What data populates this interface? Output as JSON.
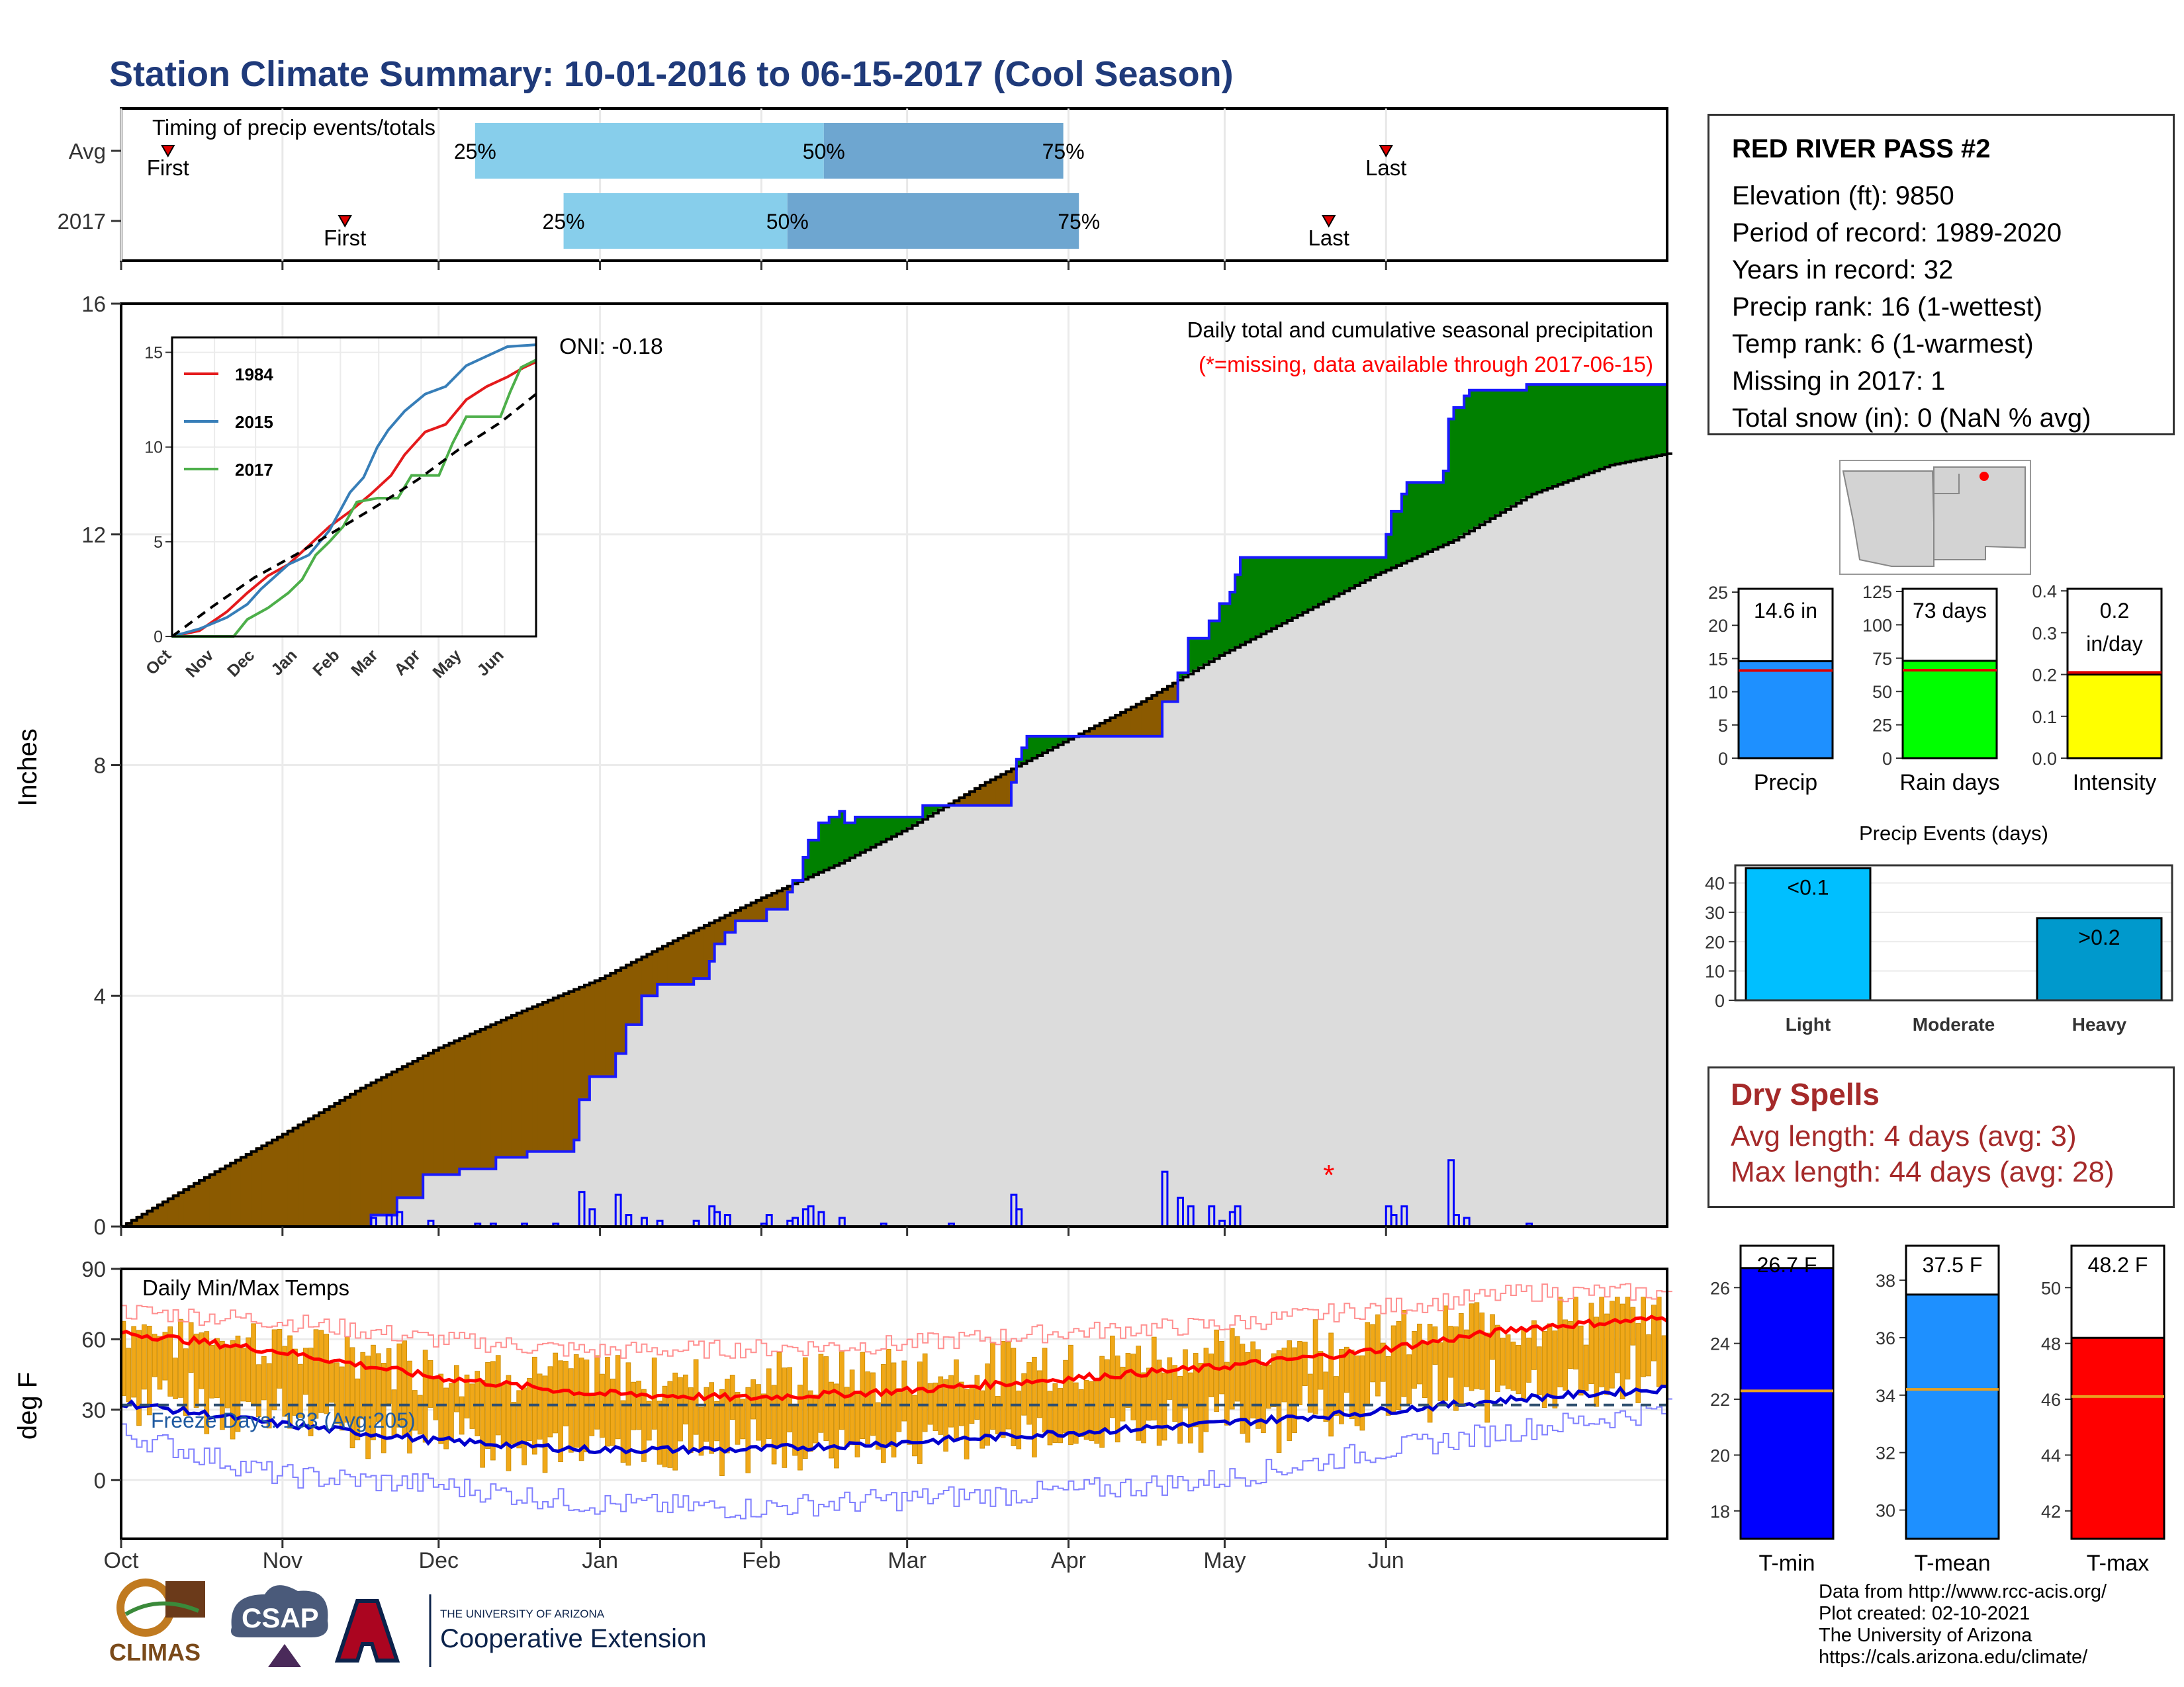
{
  "title": "Station Climate Summary: 10-01-2016 to 06-15-2017 (Cool Season)",
  "timing_panel": {
    "label": "Timing of precip events/totals",
    "rows": [
      {
        "name": "Avg",
        "first_label": "First",
        "last_label": "Last",
        "first": "2016-10-10",
        "last": "2017-06-01",
        "p25": "2016-12-08",
        "p50": "2017-02-13",
        "p75": "2017-03-31"
      },
      {
        "name": "2017",
        "first_label": "First",
        "last_label": "Last",
        "first": "2016-11-13",
        "last": "2017-05-21",
        "p25": "2016-12-25",
        "p50": "2017-02-06",
        "p75": "2017-04-03"
      }
    ],
    "pct_labels": [
      "25%",
      "50%",
      "75%"
    ],
    "colors": {
      "light": "#87ceeb",
      "dark": "#6ea6d0",
      "marker": "#e00000"
    }
  },
  "precip_chart": {
    "ylabel": "Inches",
    "yticks": [
      0,
      4,
      8,
      12,
      16
    ],
    "ylim": [
      0,
      16
    ],
    "oni_label": "ONI: -0.18",
    "note_title": "Daily total and cumulative seasonal precipitation",
    "note_missing": "(*=missing, data available through 2017-06-15)",
    "colors": {
      "surplus": "#008000",
      "deficit": "#8b5a00",
      "climo": "#dcdcdc",
      "bars": "#0000ff"
    },
    "cumulative_avg": [
      [
        0,
        0
      ],
      [
        15,
        0.8
      ],
      [
        31,
        1.6
      ],
      [
        46,
        2.4
      ],
      [
        61,
        3.1
      ],
      [
        76,
        3.7
      ],
      [
        92,
        4.3
      ],
      [
        107,
        5.0
      ],
      [
        123,
        5.7
      ],
      [
        138,
        6.3
      ],
      [
        151,
        6.9
      ],
      [
        166,
        7.7
      ],
      [
        181,
        8.4
      ],
      [
        196,
        9.1
      ],
      [
        211,
        9.9
      ],
      [
        226,
        10.6
      ],
      [
        241,
        11.3
      ],
      [
        256,
        11.9
      ],
      [
        271,
        12.7
      ],
      [
        286,
        13.2
      ],
      [
        297,
        13.4
      ]
    ],
    "cumulative_2017": [
      [
        0,
        0
      ],
      [
        45,
        0
      ],
      [
        48,
        0.2
      ],
      [
        53,
        0.5
      ],
      [
        58,
        0.9
      ],
      [
        65,
        1.0
      ],
      [
        72,
        1.2
      ],
      [
        78,
        1.3
      ],
      [
        87,
        1.5
      ],
      [
        88,
        2.2
      ],
      [
        90,
        2.6
      ],
      [
        95,
        3.0
      ],
      [
        97,
        3.5
      ],
      [
        100,
        4.0
      ],
      [
        103,
        4.2
      ],
      [
        110,
        4.3
      ],
      [
        113,
        4.6
      ],
      [
        114,
        4.9
      ],
      [
        116,
        5.1
      ],
      [
        118,
        5.3
      ],
      [
        123,
        5.3
      ],
      [
        124,
        5.5
      ],
      [
        128,
        5.8
      ],
      [
        129,
        6.0
      ],
      [
        131,
        6.4
      ],
      [
        132,
        6.7
      ],
      [
        134,
        7.0
      ],
      [
        136,
        7.1
      ],
      [
        138,
        7.2
      ],
      [
        139,
        7.0
      ],
      [
        141,
        7.1
      ],
      [
        153,
        7.1
      ],
      [
        154,
        7.3
      ],
      [
        170,
        7.3
      ],
      [
        171,
        7.7
      ],
      [
        172,
        8.1
      ],
      [
        173,
        8.3
      ],
      [
        174,
        8.5
      ],
      [
        199,
        8.5
      ],
      [
        200,
        9.1
      ],
      [
        203,
        9.6
      ],
      [
        205,
        10.2
      ],
      [
        209,
        10.5
      ],
      [
        211,
        10.8
      ],
      [
        213,
        11.0
      ],
      [
        214,
        11.3
      ],
      [
        215,
        11.6
      ],
      [
        228,
        11.6
      ],
      [
        242,
        11.6
      ],
      [
        243,
        12.0
      ],
      [
        244,
        12.4
      ],
      [
        246,
        12.7
      ],
      [
        247,
        12.9
      ],
      [
        254,
        13.1
      ],
      [
        255,
        14.0
      ],
      [
        256,
        14.2
      ],
      [
        257,
        14.2
      ],
      [
        258,
        14.4
      ],
      [
        259,
        14.5
      ],
      [
        269,
        14.5
      ],
      [
        270,
        14.6
      ],
      [
        297,
        14.6
      ]
    ],
    "daily_bars": [
      [
        48,
        0.15
      ],
      [
        51,
        0.2
      ],
      [
        53,
        0.25
      ],
      [
        59,
        0.1
      ],
      [
        68,
        0.05
      ],
      [
        71,
        0.05
      ],
      [
        77,
        0.05
      ],
      [
        83,
        0.05
      ],
      [
        88,
        0.6
      ],
      [
        90,
        0.3
      ],
      [
        95,
        0.55
      ],
      [
        97,
        0.2
      ],
      [
        100,
        0.15
      ],
      [
        103,
        0.1
      ],
      [
        110,
        0.1
      ],
      [
        113,
        0.35
      ],
      [
        114,
        0.25
      ],
      [
        116,
        0.2
      ],
      [
        123,
        0.05
      ],
      [
        124,
        0.2
      ],
      [
        128,
        0.1
      ],
      [
        129,
        0.15
      ],
      [
        131,
        0.3
      ],
      [
        132,
        0.35
      ],
      [
        134,
        0.25
      ],
      [
        138,
        0.15
      ],
      [
        146,
        0.05
      ],
      [
        159,
        0.05
      ],
      [
        171,
        0.55
      ],
      [
        172,
        0.3
      ],
      [
        200,
        0.95
      ],
      [
        203,
        0.5
      ],
      [
        205,
        0.35
      ],
      [
        209,
        0.35
      ],
      [
        211,
        0.1
      ],
      [
        213,
        0.25
      ],
      [
        214,
        0.35
      ],
      [
        243,
        0.35
      ],
      [
        244,
        0.2
      ],
      [
        246,
        0.35
      ],
      [
        255,
        1.15
      ],
      [
        256,
        0.2
      ],
      [
        258,
        0.15
      ],
      [
        270,
        0.05
      ]
    ],
    "missing_marker": {
      "day": 232,
      "value": 0.95,
      "symbol": "*"
    }
  },
  "inset_chart": {
    "ylim": [
      0,
      15
    ],
    "yticks": [
      0,
      5,
      10,
      15
    ],
    "months": [
      "Oct",
      "Nov",
      "Dec",
      "Jan",
      "Feb",
      "Mar",
      "Apr",
      "May",
      "Jun"
    ],
    "series": [
      {
        "name": "1984",
        "color": "#e41a1c",
        "values": [
          [
            0,
            0
          ],
          [
            20,
            0.3
          ],
          [
            40,
            1.3
          ],
          [
            55,
            2.3
          ],
          [
            70,
            3.2
          ],
          [
            85,
            3.8
          ],
          [
            100,
            4.8
          ],
          [
            115,
            5.8
          ],
          [
            130,
            6.6
          ],
          [
            145,
            7.5
          ],
          [
            160,
            8.5
          ],
          [
            170,
            9.6
          ],
          [
            185,
            10.8
          ],
          [
            200,
            11.2
          ],
          [
            215,
            12.5
          ],
          [
            230,
            13.2
          ],
          [
            245,
            13.7
          ],
          [
            257,
            14.2
          ],
          [
            266,
            14.5
          ]
        ]
      },
      {
        "name": "2015",
        "color": "#377eb8",
        "values": [
          [
            0,
            0
          ],
          [
            20,
            0.4
          ],
          [
            40,
            1.0
          ],
          [
            55,
            1.7
          ],
          [
            65,
            2.5
          ],
          [
            85,
            3.8
          ],
          [
            100,
            4.3
          ],
          [
            115,
            5.6
          ],
          [
            130,
            7.6
          ],
          [
            140,
            8.4
          ],
          [
            150,
            10.0
          ],
          [
            158,
            10.9
          ],
          [
            170,
            11.9
          ],
          [
            185,
            12.8
          ],
          [
            200,
            13.2
          ],
          [
            215,
            14.3
          ],
          [
            230,
            14.8
          ],
          [
            245,
            15.3
          ],
          [
            266,
            15.4
          ]
        ]
      },
      {
        "name": "2017",
        "color": "#4daf4a",
        "values": [
          [
            0,
            0
          ],
          [
            45,
            0
          ],
          [
            55,
            0.9
          ],
          [
            70,
            1.5
          ],
          [
            85,
            2.3
          ],
          [
            95,
            3.0
          ],
          [
            105,
            4.3
          ],
          [
            115,
            5.0
          ],
          [
            125,
            5.8
          ],
          [
            135,
            7.1
          ],
          [
            150,
            7.3
          ],
          [
            165,
            7.3
          ],
          [
            175,
            8.5
          ],
          [
            195,
            8.5
          ],
          [
            205,
            10.2
          ],
          [
            215,
            11.6
          ],
          [
            240,
            11.6
          ],
          [
            247,
            12.9
          ],
          [
            255,
            14.2
          ],
          [
            266,
            14.6
          ]
        ]
      }
    ],
    "climo_dashed": [
      [
        0,
        0
      ],
      [
        30,
        1.6
      ],
      [
        60,
        3.1
      ],
      [
        90,
        4.3
      ],
      [
        120,
        5.6
      ],
      [
        150,
        6.9
      ],
      [
        180,
        8.3
      ],
      [
        210,
        9.9
      ],
      [
        240,
        11.3
      ],
      [
        266,
        12.8
      ]
    ]
  },
  "temp_chart": {
    "ylabel": "deg F",
    "yticks": [
      0,
      30,
      60,
      90
    ],
    "ylim": [
      -25,
      90
    ],
    "label": "Daily Min/Max Temps",
    "freeze_label": "Freeze Days: 183 (Avg:205)",
    "freeze_line": 32,
    "colors": {
      "bars": "#f0a818",
      "avg_max": "#ff0000",
      "avg_min": "#0000cd",
      "record_max": "#ff9090",
      "record_min": "#8080ff"
    },
    "avg_max": [
      [
        0,
        63
      ],
      [
        30,
        55
      ],
      [
        60,
        44
      ],
      [
        90,
        37
      ],
      [
        120,
        35
      ],
      [
        150,
        38
      ],
      [
        180,
        43
      ],
      [
        210,
        48
      ],
      [
        240,
        55
      ],
      [
        270,
        65
      ],
      [
        297,
        69
      ]
    ],
    "avg_min": [
      [
        0,
        33
      ],
      [
        30,
        24
      ],
      [
        60,
        17
      ],
      [
        90,
        13
      ],
      [
        120,
        13
      ],
      [
        150,
        16
      ],
      [
        180,
        20
      ],
      [
        210,
        24
      ],
      [
        240,
        29
      ],
      [
        270,
        35
      ],
      [
        297,
        39
      ]
    ],
    "record_max": [
      [
        0,
        72
      ],
      [
        30,
        68
      ],
      [
        60,
        60
      ],
      [
        90,
        55
      ],
      [
        120,
        56
      ],
      [
        150,
        58
      ],
      [
        180,
        63
      ],
      [
        210,
        66
      ],
      [
        240,
        73
      ],
      [
        270,
        80
      ],
      [
        297,
        80
      ]
    ],
    "record_min": [
      [
        0,
        20
      ],
      [
        30,
        2
      ],
      [
        60,
        -2
      ],
      [
        90,
        -10
      ],
      [
        120,
        -12
      ],
      [
        150,
        -8
      ],
      [
        180,
        -5
      ],
      [
        210,
        0
      ],
      [
        240,
        12
      ],
      [
        270,
        22
      ],
      [
        297,
        30
      ]
    ]
  },
  "x_axis": {
    "months": [
      "Oct",
      "Nov",
      "Dec",
      "Jan",
      "Feb",
      "Mar",
      "Apr",
      "May",
      "Jun"
    ],
    "days_total": 297
  },
  "info": {
    "station": "RED RIVER PASS #2",
    "rows": [
      "Elevation (ft): 9850",
      "Period of record: 1989-2020",
      "Years in record: 32",
      "Precip rank: 16 (1-wettest)",
      "Temp rank: 6 (1-warmest)",
      "Missing in 2017: 1",
      "Total snow (in): 0 (NaN % avg)"
    ]
  },
  "small_bars": [
    {
      "label": "Precip",
      "value": 14.6,
      "avg": 13.2,
      "value_label": "14.6 in",
      "yticks": [
        0,
        5,
        10,
        15,
        20,
        25
      ],
      "ymax": 25.5,
      "color": "#1e90ff"
    },
    {
      "label": "Rain days",
      "value": 73,
      "avg": 66,
      "value_label": "73 days",
      "yticks": [
        0,
        25,
        50,
        75,
        100,
        125
      ],
      "ymax": 127,
      "color": "#00ff00"
    },
    {
      "label": "Intensity",
      "value": 0.2,
      "avg": 0.205,
      "value_label": "0.2",
      "value_label2": "in/day",
      "yticks": [
        0.0,
        0.1,
        0.2,
        0.3,
        0.4
      ],
      "ymax": 0.405,
      "color": "#ffff00"
    }
  ],
  "events_chart": {
    "title": "Precip Events (days)",
    "categories": [
      "Light",
      "Moderate",
      "Heavy"
    ],
    "values": [
      45,
      0,
      28
    ],
    "bar_labels": [
      "<0.1",
      "",
      ">0.2"
    ],
    "yticks": [
      0,
      10,
      20,
      30,
      40
    ],
    "ymax": 46,
    "colors": [
      "#00bfff",
      "#1e90ff",
      "#0099cc"
    ]
  },
  "dry_spells": {
    "title": "Dry Spells",
    "avg_length": "Avg length: 4 days (avg: 3)",
    "max_length": "Max length: 44 days (avg: 28)"
  },
  "temp_bars": [
    {
      "label": "T-min",
      "value": 26.7,
      "avg": 22.3,
      "value_label": "26.7 F",
      "yticks": [
        18,
        20,
        22,
        24,
        26
      ],
      "ylim": [
        17,
        27.5
      ],
      "color": "#0000ff"
    },
    {
      "label": "T-mean",
      "value": 37.5,
      "avg": 34.2,
      "value_label": "37.5 F",
      "yticks": [
        30,
        32,
        34,
        36,
        38
      ],
      "ylim": [
        29,
        39.2
      ],
      "color": "#1e90ff"
    },
    {
      "label": "T-max",
      "value": 48.2,
      "avg": 46.1,
      "value_label": "48.2 F",
      "yticks": [
        42,
        44,
        46,
        48,
        50
      ],
      "ylim": [
        41,
        51.5
      ],
      "color": "#ff0000"
    }
  ],
  "credits": [
    "Data from http://www.rcc-acis.org/",
    "Plot created: 02-10-2021",
    "The University of Arizona",
    "https://cals.arizona.edu/climate/"
  ],
  "logos": {
    "climas": "CLIMAS",
    "csap": "CSAP",
    "ua_small": "THE UNIVERSITY OF ARIZONA",
    "coop": "Cooperative Extension"
  }
}
